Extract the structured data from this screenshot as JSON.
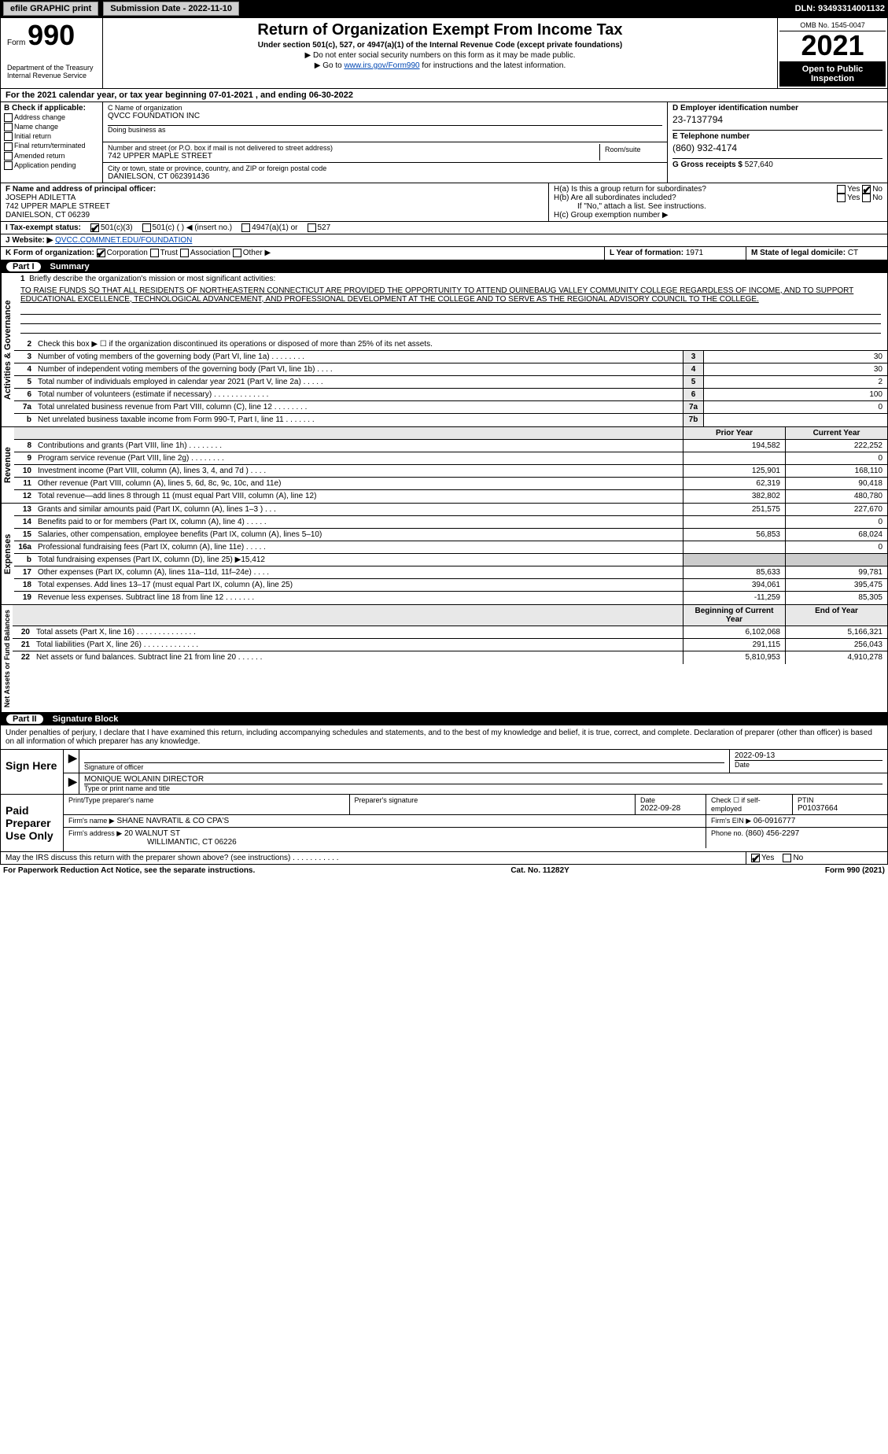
{
  "topbar": {
    "efile_label": "efile GRAPHIC print",
    "submission_label": "Submission Date - 2022-11-10",
    "dln_label": "DLN: 93493314001132"
  },
  "header": {
    "form_label": "Form",
    "form_number": "990",
    "dept": "Department of the Treasury\nInternal Revenue Service",
    "title": "Return of Organization Exempt From Income Tax",
    "subtitle": "Under section 501(c), 527, or 4947(a)(1) of the Internal Revenue Code (except private foundations)",
    "note1": "▶ Do not enter social security numbers on this form as it may be made public.",
    "note2_prefix": "▶ Go to ",
    "note2_link": "www.irs.gov/Form990",
    "note2_suffix": " for instructions and the latest information.",
    "omb": "OMB No. 1545-0047",
    "year": "2021",
    "open": "Open to Public Inspection"
  },
  "taxyear": "For the 2021 calendar year, or tax year beginning 07-01-2021   , and ending 06-30-2022",
  "checkboxes_b": {
    "label": "B Check if applicable:",
    "items": [
      "Address change",
      "Name change",
      "Initial return",
      "Final return/terminated",
      "Amended return",
      "Application pending"
    ]
  },
  "org": {
    "c_label": "C Name of organization",
    "name": "QVCC FOUNDATION INC",
    "dba_label": "Doing business as",
    "addr_label": "Number and street (or P.O. box if mail is not delivered to street address)",
    "room_label": "Room/suite",
    "addr": "742 UPPER MAPLE STREET",
    "city_label": "City or town, state or province, country, and ZIP or foreign postal code",
    "city": "DANIELSON, CT  062391436"
  },
  "col_d": {
    "ein_label": "D Employer identification number",
    "ein": "23-7137794",
    "phone_label": "E Telephone number",
    "phone": "(860) 932-4174",
    "gross_label": "G Gross receipts $",
    "gross": "527,640"
  },
  "officer": {
    "f_label": "F Name and address of principal officer:",
    "name": "JOSEPH ADILETTA",
    "addr1": "742 UPPER MAPLE STREET",
    "addr2": "DANIELSON, CT  06239"
  },
  "h": {
    "ha_label": "H(a)  Is this a group return for subordinates?",
    "hb_label": "H(b)  Are all subordinates included?",
    "hb_note": "If \"No,\" attach a list. See instructions.",
    "hc_label": "H(c)  Group exemption number ▶",
    "yes": "Yes",
    "no": "No"
  },
  "tax_status": {
    "i_label": "I   Tax-exempt status:",
    "opt1": "501(c)(3)",
    "opt2": "501(c) (   ) ◀ (insert no.)",
    "opt3": "4947(a)(1) or",
    "opt4": "527"
  },
  "website": {
    "j_label": "J  Website: ▶",
    "url": "QVCC.COMMNET.EDU/FOUNDATION"
  },
  "k": {
    "label": "K Form of organization:",
    "corp": "Corporation",
    "trust": "Trust",
    "assoc": "Association",
    "other": "Other ▶"
  },
  "l": {
    "label": "L Year of formation:",
    "val": "1971"
  },
  "m": {
    "label": "M State of legal domicile:",
    "val": "CT"
  },
  "part1": {
    "pt": "Part I",
    "title": "Summary"
  },
  "mission_num": "1",
  "mission_label": "Briefly describe the organization's mission or most significant activities:",
  "mission": "TO RAISE FUNDS SO THAT ALL RESIDENTS OF NORTHEASTERN CONNECTICUT ARE PROVIDED THE OPPORTUNITY TO ATTEND QUINEBAUG VALLEY COMMUNITY COLLEGE REGARDLESS OF INCOME, AND TO SUPPORT EDUCATIONAL EXCELLENCE, TECHNOLOGICAL ADVANCEMENT, AND PROFESSIONAL DEVELOPMENT AT THE COLLEGE AND TO SERVE AS THE REGIONAL ADVISORY COUNCIL TO THE COLLEGE.",
  "gov_lines": [
    {
      "n": "2",
      "d": "Check this box ▶ ☐ if the organization discontinued its operations or disposed of more than 25% of its net assets.",
      "box": "",
      "v": ""
    },
    {
      "n": "3",
      "d": "Number of voting members of the governing body (Part VI, line 1a)  .  .  .  .  .  .  .  .",
      "box": "3",
      "v": "30"
    },
    {
      "n": "4",
      "d": "Number of independent voting members of the governing body (Part VI, line 1b)  .  .  .  .",
      "box": "4",
      "v": "30"
    },
    {
      "n": "5",
      "d": "Total number of individuals employed in calendar year 2021 (Part V, line 2a)  .  .  .  .  .",
      "box": "5",
      "v": "2"
    },
    {
      "n": "6",
      "d": "Total number of volunteers (estimate if necessary)  .  .  .  .  .  .  .  .  .  .  .  .  .",
      "box": "6",
      "v": "100"
    },
    {
      "n": "7a",
      "d": "Total unrelated business revenue from Part VIII, column (C), line 12  .  .  .  .  .  .  .  .",
      "box": "7a",
      "v": "0"
    },
    {
      "n": "b",
      "d": "Net unrelated business taxable income from Form 990-T, Part I, line 11  .  .  .  .  .  .  .",
      "box": "7b",
      "v": ""
    }
  ],
  "col_hdr": {
    "prior": "Prior Year",
    "current": "Current Year"
  },
  "revenue_lines": [
    {
      "n": "8",
      "d": "Contributions and grants (Part VIII, line 1h)  .  .  .  .  .  .  .  .",
      "p": "194,582",
      "c": "222,252"
    },
    {
      "n": "9",
      "d": "Program service revenue (Part VIII, line 2g)  .  .  .  .  .  .  .  .",
      "p": "",
      "c": "0"
    },
    {
      "n": "10",
      "d": "Investment income (Part VIII, column (A), lines 3, 4, and 7d )  .  .  .  .",
      "p": "125,901",
      "c": "168,110"
    },
    {
      "n": "11",
      "d": "Other revenue (Part VIII, column (A), lines 5, 6d, 8c, 9c, 10c, and 11e)",
      "p": "62,319",
      "c": "90,418"
    },
    {
      "n": "12",
      "d": "Total revenue—add lines 8 through 11 (must equal Part VIII, column (A), line 12)",
      "p": "382,802",
      "c": "480,780"
    }
  ],
  "expense_lines": [
    {
      "n": "13",
      "d": "Grants and similar amounts paid (Part IX, column (A), lines 1–3 )  .  .  .",
      "p": "251,575",
      "c": "227,670"
    },
    {
      "n": "14",
      "d": "Benefits paid to or for members (Part IX, column (A), line 4)  .  .  .  .  .",
      "p": "",
      "c": "0"
    },
    {
      "n": "15",
      "d": "Salaries, other compensation, employee benefits (Part IX, column (A), lines 5–10)",
      "p": "56,853",
      "c": "68,024"
    },
    {
      "n": "16a",
      "d": "Professional fundraising fees (Part IX, column (A), line 11e)  .  .  .  .  .",
      "p": "",
      "c": "0"
    },
    {
      "n": "b",
      "d": "Total fundraising expenses (Part IX, column (D), line 25) ▶15,412",
      "p": null,
      "c": null
    },
    {
      "n": "17",
      "d": "Other expenses (Part IX, column (A), lines 11a–11d, 11f–24e)  .  .  .  .",
      "p": "85,633",
      "c": "99,781"
    },
    {
      "n": "18",
      "d": "Total expenses. Add lines 13–17 (must equal Part IX, column (A), line 25)",
      "p": "394,061",
      "c": "395,475"
    },
    {
      "n": "19",
      "d": "Revenue less expenses. Subtract line 18 from line 12  .  .  .  .  .  .  .",
      "p": "-11,259",
      "c": "85,305"
    }
  ],
  "net_hdr": {
    "begin": "Beginning of Current Year",
    "end": "End of Year"
  },
  "net_lines": [
    {
      "n": "20",
      "d": "Total assets (Part X, line 16)  .  .  .  .  .  .  .  .  .  .  .  .  .  .",
      "p": "6,102,068",
      "c": "5,166,321"
    },
    {
      "n": "21",
      "d": "Total liabilities (Part X, line 26)  .  .  .  .  .  .  .  .  .  .  .  .  .",
      "p": "291,115",
      "c": "256,043"
    },
    {
      "n": "22",
      "d": "Net assets or fund balances. Subtract line 21 from line 20  .  .  .  .  .  .",
      "p": "5,810,953",
      "c": "4,910,278"
    }
  ],
  "part2": {
    "pt": "Part II",
    "title": "Signature Block"
  },
  "declaration": "Under penalties of perjury, I declare that I have examined this return, including accompanying schedules and statements, and to the best of my knowledge and belief, it is true, correct, and complete. Declaration of preparer (other than officer) is based on all information of which preparer has any knowledge.",
  "sign": {
    "label": "Sign Here",
    "sig_label": "Signature of officer",
    "date_label": "Date",
    "date": "2022-09-13",
    "name": "MONIQUE WOLANIN  DIRECTOR",
    "name_label": "Type or print name and title"
  },
  "paid": {
    "label": "Paid Preparer Use Only",
    "prep_name_label": "Print/Type preparer's name",
    "prep_sig_label": "Preparer's signature",
    "prep_date_label": "Date",
    "prep_date": "2022-09-28",
    "self_label": "Check ☐ if self-employed",
    "ptin_label": "PTIN",
    "ptin": "P01037664",
    "firm_name_label": "Firm's name    ▶",
    "firm_name": "SHANE NAVRATIL & CO CPA'S",
    "firm_ein_label": "Firm's EIN ▶",
    "firm_ein": "06-0916777",
    "firm_addr_label": "Firm's address ▶",
    "firm_addr1": "20 WALNUT ST",
    "firm_addr2": "WILLIMANTIC, CT  06226",
    "firm_phone_label": "Phone no.",
    "firm_phone": "(860) 456-2297"
  },
  "discuss": {
    "q": "May the IRS discuss this return with the preparer shown above? (see instructions)  .  .  .  .  .  .  .  .  .  .  .",
    "yes": "Yes",
    "no": "No"
  },
  "footer": {
    "pra": "For Paperwork Reduction Act Notice, see the separate instructions.",
    "cat": "Cat. No. 11282Y",
    "form": "Form 990 (2021)"
  },
  "vlabels": {
    "gov": "Activities & Governance",
    "rev": "Revenue",
    "exp": "Expenses",
    "net": "Net Assets or Fund Balances"
  }
}
